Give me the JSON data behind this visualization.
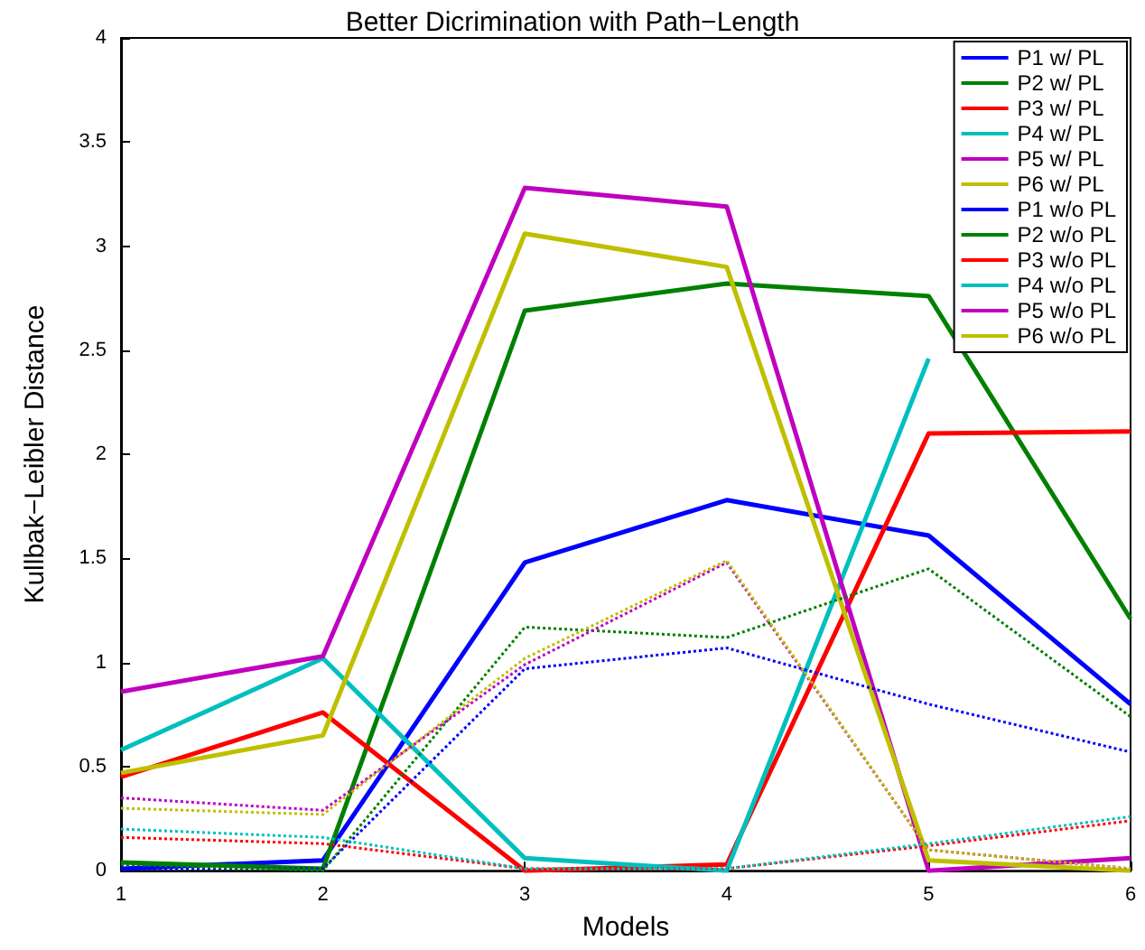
{
  "chart_data": {
    "type": "line",
    "title": "Better Dicrimination with Path−Length",
    "xlabel": "Models",
    "ylabel": "Kullbak−Leibler Distance",
    "x": [
      1,
      2,
      3,
      4,
      5,
      6
    ],
    "xlim": [
      1,
      6
    ],
    "xticks": [
      1,
      2,
      3,
      4,
      5,
      6
    ],
    "ylim": [
      0,
      4
    ],
    "yticks": [
      0,
      0.5,
      1,
      1.5,
      2,
      2.5,
      3,
      3.5,
      4
    ],
    "grid": false,
    "legend": "top right",
    "marker": "none",
    "series": [
      {
        "name": "P1 w/ PL",
        "color": "#0000ff",
        "line_style": "solid",
        "values": [
          0.01,
          0.05,
          1.48,
          1.78,
          1.61,
          0.8
        ]
      },
      {
        "name": "P2 w/ PL",
        "color": "#008000",
        "line_style": "solid",
        "values": [
          0.04,
          0.01,
          2.69,
          2.82,
          2.76,
          1.21
        ]
      },
      {
        "name": "P3 w/ PL",
        "color": "#ff0000",
        "line_style": "solid",
        "values": [
          0.45,
          0.76,
          0.0,
          0.03,
          2.1,
          2.11
        ]
      },
      {
        "name": "P4 w/ PL",
        "color": "#00bfbf",
        "line_style": "solid",
        "values": [
          0.58,
          1.02,
          0.06,
          0.0,
          2.46,
          null
        ]
      },
      {
        "name": "P5 w/ PL",
        "color": "#bf00bf",
        "line_style": "solid",
        "values": [
          0.86,
          1.03,
          3.28,
          3.19,
          0.0,
          0.06
        ]
      },
      {
        "name": "P6 w/ PL",
        "color": "#bfbf00",
        "line_style": "solid",
        "values": [
          0.47,
          0.65,
          3.06,
          2.9,
          0.05,
          0.0
        ]
      },
      {
        "name": "P1 w/o PL",
        "color": "#0000ff",
        "line_style": "dotted",
        "values": [
          0.01,
          0.01,
          0.97,
          1.07,
          0.8,
          0.57
        ]
      },
      {
        "name": "P2 w/o PL",
        "color": "#008000",
        "line_style": "dotted",
        "values": [
          0.03,
          0.0,
          1.17,
          1.12,
          1.45,
          0.74
        ]
      },
      {
        "name": "P3 w/o PL",
        "color": "#ff0000",
        "line_style": "dotted",
        "values": [
          0.16,
          0.13,
          0.01,
          0.01,
          0.12,
          0.24
        ]
      },
      {
        "name": "P4 w/o PL",
        "color": "#00bfbf",
        "line_style": "dotted",
        "values": [
          0.2,
          0.16,
          0.01,
          0.01,
          0.13,
          0.26
        ]
      },
      {
        "name": "P5 w/o PL",
        "color": "#bf00bf",
        "line_style": "dotted",
        "values": [
          0.35,
          0.29,
          0.99,
          1.48,
          0.1,
          0.01
        ]
      },
      {
        "name": "P6 w/o PL",
        "color": "#bfbf00",
        "line_style": "dotted",
        "values": [
          0.3,
          0.27,
          1.02,
          1.49,
          0.1,
          0.01
        ]
      }
    ]
  }
}
